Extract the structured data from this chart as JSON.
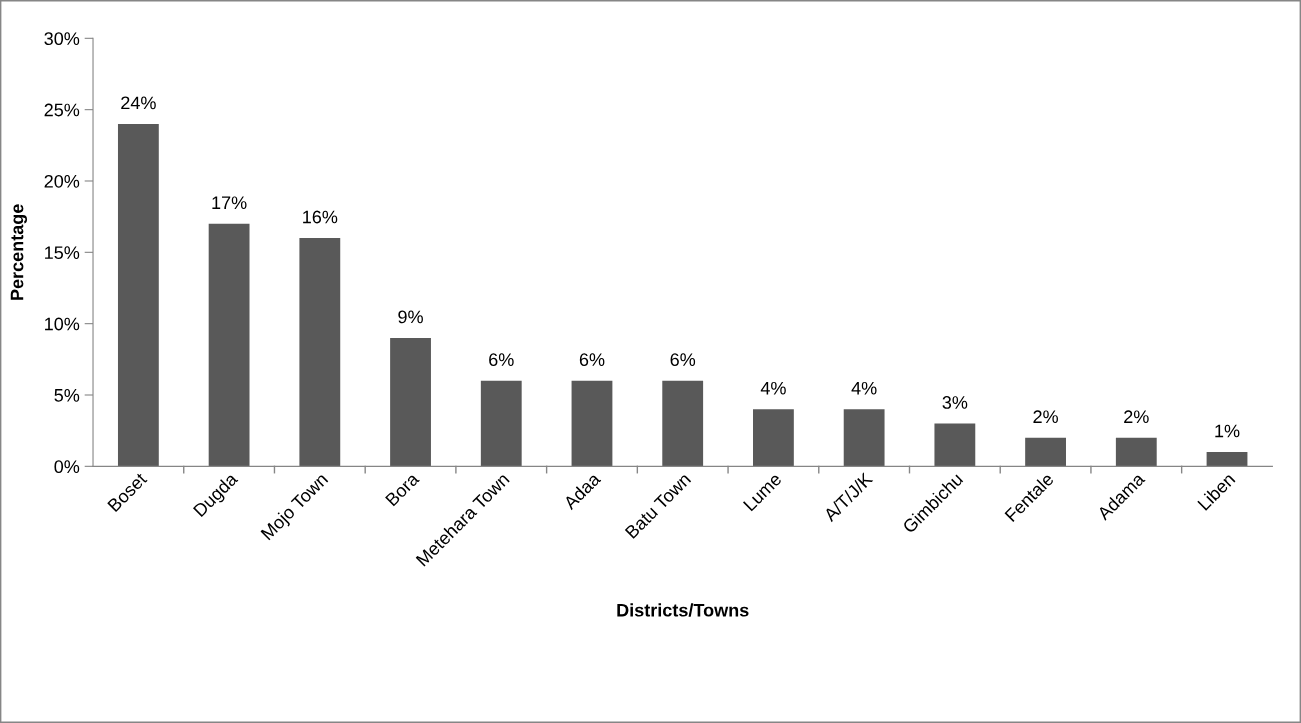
{
  "chart_data": {
    "type": "bar",
    "xlabel": "Districts/Towns",
    "ylabel": "Percentage",
    "categories": [
      "Boset",
      "Dugda",
      "Mojo Town",
      "Bora",
      "Metehara Town",
      "Adaa",
      "Batu Town",
      "Lume",
      "A/T/J/K",
      "Gimbichu",
      "Fentale",
      "Adama",
      "Liben"
    ],
    "values": [
      24,
      17,
      16,
      9,
      6,
      6,
      6,
      4,
      4,
      3,
      2,
      2,
      1
    ],
    "value_labels": [
      "24%",
      "17%",
      "16%",
      "9%",
      "6%",
      "6%",
      "6%",
      "4%",
      "4%",
      "3%",
      "2%",
      "2%",
      "1%"
    ],
    "color": "#595959",
    "ylim": [
      0,
      30
    ],
    "yticks": [
      {
        "value": 0,
        "label": "0%"
      },
      {
        "value": 5,
        "label": "5%"
      },
      {
        "value": 10,
        "label": "10%"
      },
      {
        "value": 15,
        "label": "15%"
      },
      {
        "value": 20,
        "label": "20%"
      },
      {
        "value": 25,
        "label": "25%"
      },
      {
        "value": 30,
        "label": "30%"
      }
    ],
    "grid": false
  }
}
